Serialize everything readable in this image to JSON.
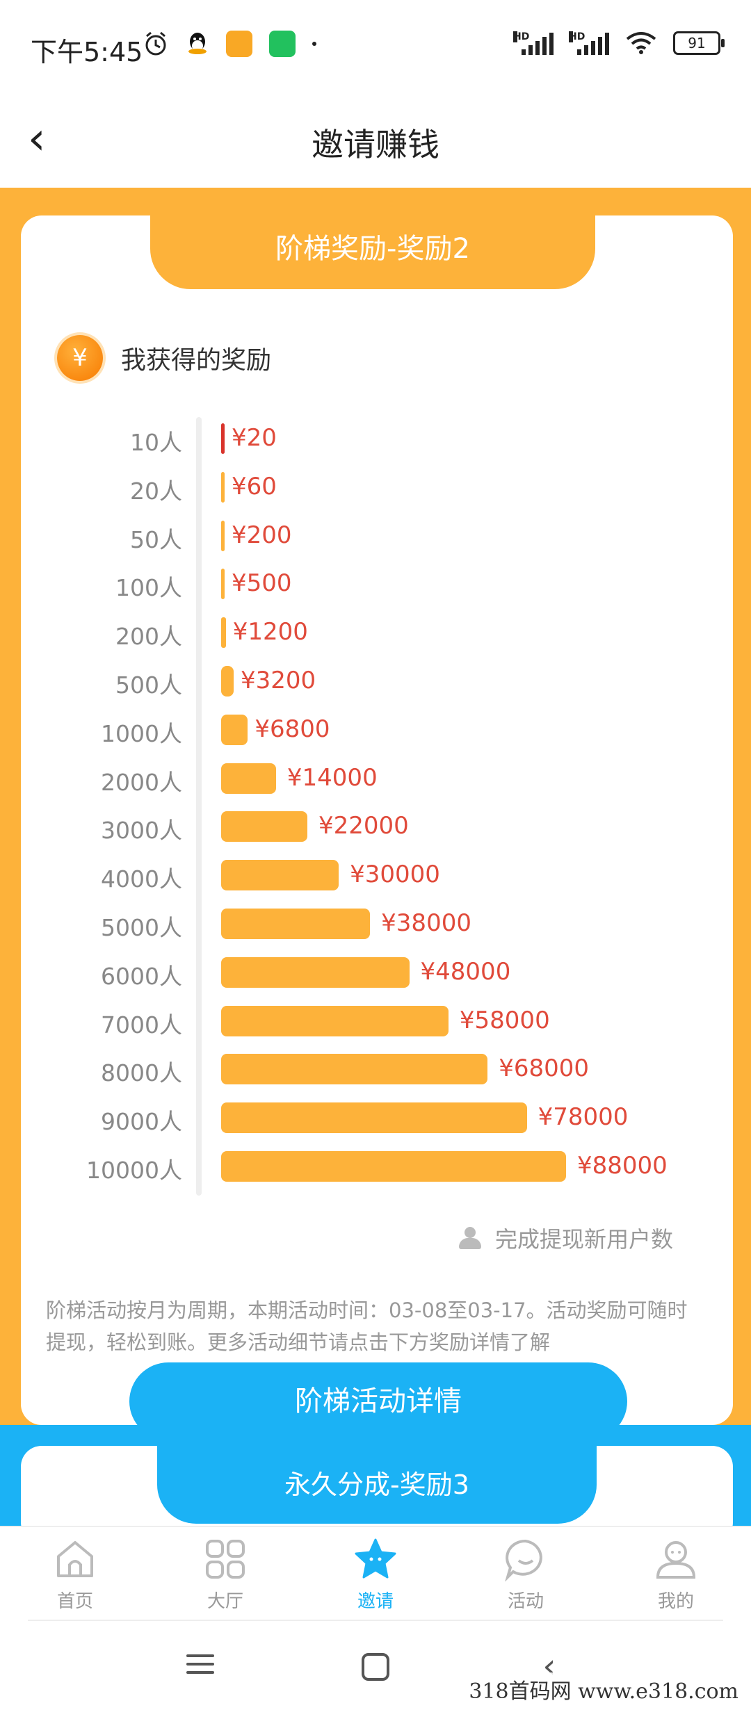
{
  "status_bar": {
    "time": "下午5:45",
    "battery": "91",
    "hd": "HD"
  },
  "header": {
    "title": "邀请赚钱",
    "back_glyph": "‹"
  },
  "colors": {
    "orange": "#FDB23A",
    "blue": "#1BB2F5",
    "red_text": "#E04A3A",
    "first_bar": "#D9332B"
  },
  "reward_card": {
    "banner": "阶梯奖励-奖励2",
    "coin_glyph": "¥",
    "title": "我获得的奖励",
    "tiers": [
      {
        "label": "10人",
        "value": "¥20",
        "amount": 20
      },
      {
        "label": "20人",
        "value": "¥60",
        "amount": 60
      },
      {
        "label": "50人",
        "value": "¥200",
        "amount": 200
      },
      {
        "label": "100人",
        "value": "¥500",
        "amount": 500
      },
      {
        "label": "200人",
        "value": "¥1200",
        "amount": 1200
      },
      {
        "label": "500人",
        "value": "¥3200",
        "amount": 3200
      },
      {
        "label": "1000人",
        "value": "¥6800",
        "amount": 6800
      },
      {
        "label": "2000人",
        "value": "¥14000",
        "amount": 14000
      },
      {
        "label": "3000人",
        "value": "¥22000",
        "amount": 22000
      },
      {
        "label": "4000人",
        "value": "¥30000",
        "amount": 30000
      },
      {
        "label": "5000人",
        "value": "¥38000",
        "amount": 38000
      },
      {
        "label": "6000人",
        "value": "¥48000",
        "amount": 48000
      },
      {
        "label": "7000人",
        "value": "¥58000",
        "amount": 58000
      },
      {
        "label": "8000人",
        "value": "¥68000",
        "amount": 68000
      },
      {
        "label": "9000人",
        "value": "¥78000",
        "amount": 78000
      },
      {
        "label": "10000人",
        "value": "¥88000",
        "amount": 88000
      }
    ],
    "legend": "完成提现新用户数",
    "description": "阶梯活动按月为周期，本期活动时间：03-08至03-17。活动奖励可随时提现，轻松到账。更多活动细节请点击下方奖励详情了解",
    "detail_button": "阶梯活动详情"
  },
  "next_card": {
    "banner": "永久分成-奖励3"
  },
  "bottom_nav": [
    {
      "label": "首页",
      "icon": "home-icon",
      "active": false
    },
    {
      "label": "大厅",
      "icon": "grid-icon",
      "active": false
    },
    {
      "label": "邀请",
      "icon": "star-icon",
      "active": true
    },
    {
      "label": "活动",
      "icon": "chat-bubble-icon",
      "active": false
    },
    {
      "label": "我的",
      "icon": "profile-icon",
      "active": false
    }
  ],
  "watermark": "318首码网 www.e318.com"
}
